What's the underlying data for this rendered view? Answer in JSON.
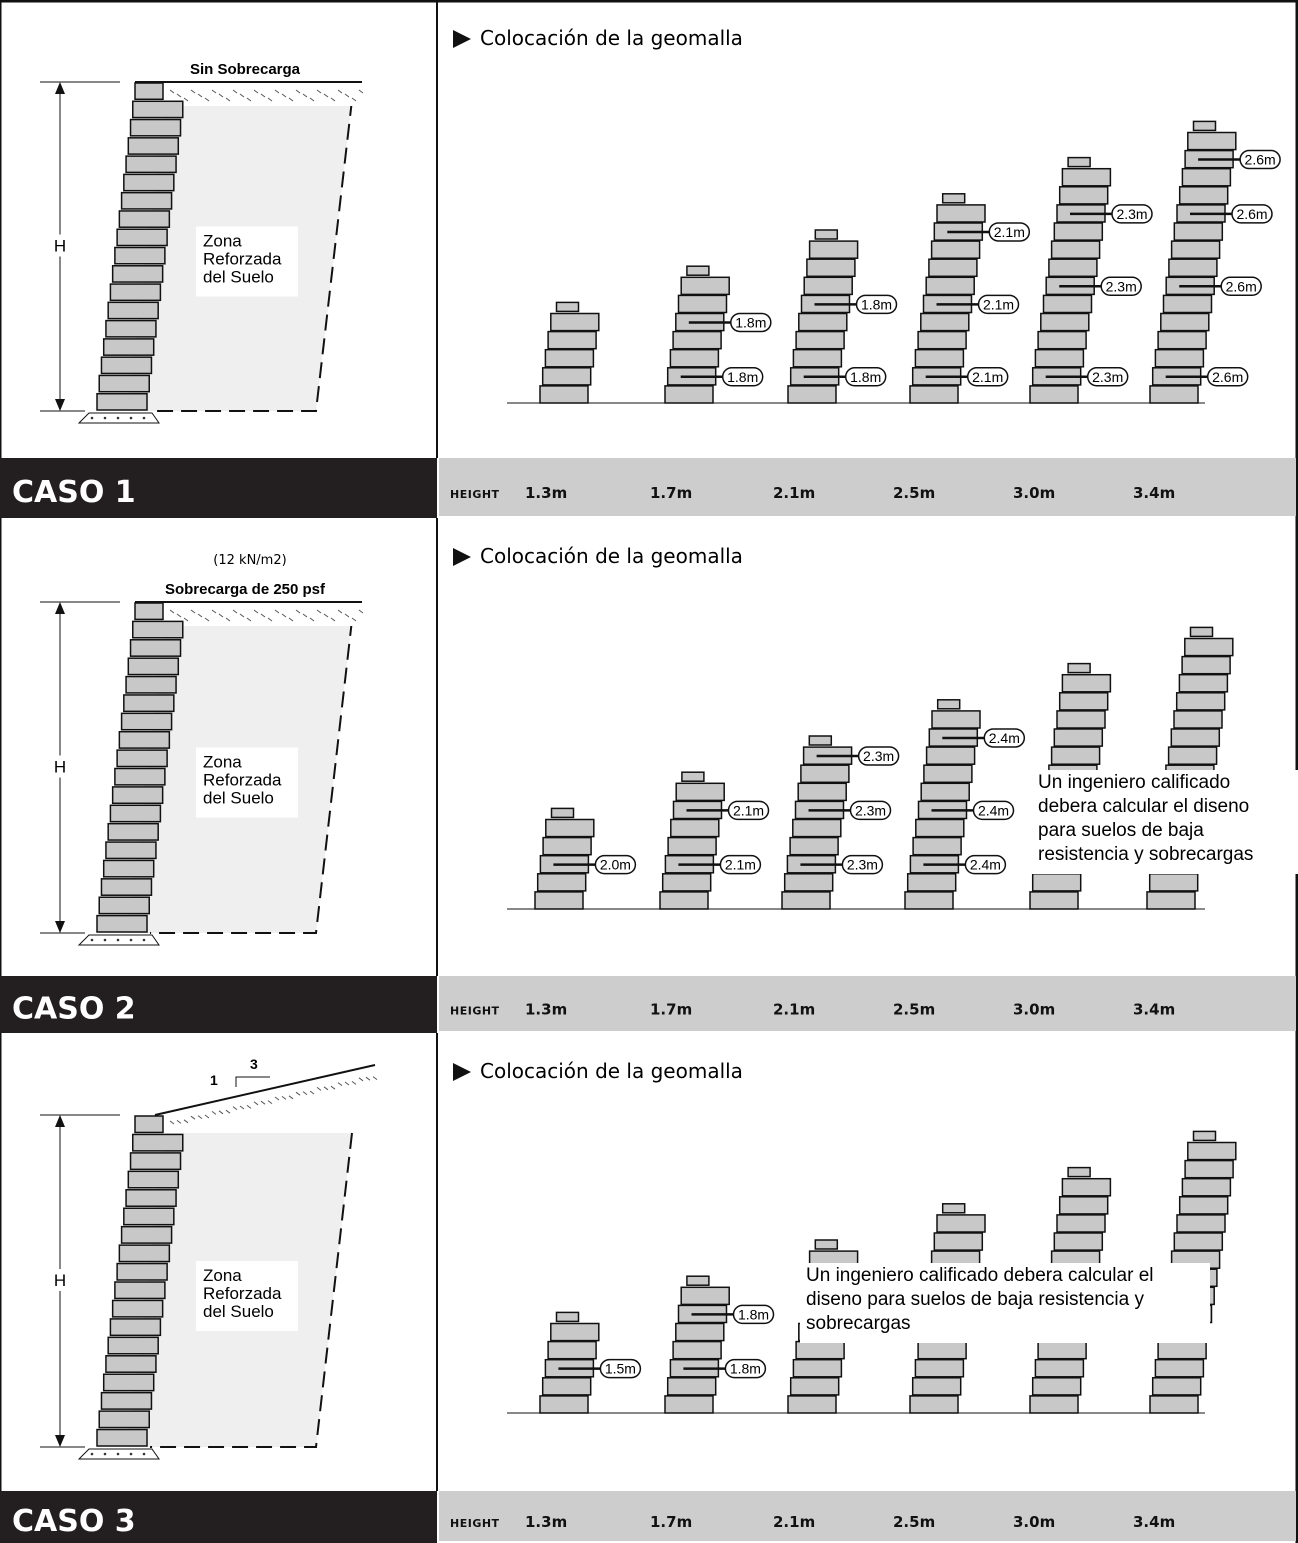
{
  "cases": [
    {
      "label": "CASO 1",
      "load_note": "",
      "load_label": "Sin Sobrecarga",
      "slope": null,
      "h_label": "H",
      "zone_label": [
        "Zona",
        "Reforzada",
        "del Suelo"
      ],
      "placement_title": "Colocación de la geomalla",
      "height_label": "Height",
      "heights": [
        "1.3m",
        "1.7m",
        "2.1m",
        "2.5m",
        "3.0m",
        "3.4m"
      ],
      "walls": [
        {
          "grids": []
        },
        {
          "grids": [
            "1.8m",
            "1.8m"
          ]
        },
        {
          "grids": [
            "1.8m",
            "1.8m"
          ]
        },
        {
          "grids": [
            "2.1m",
            "2.1m",
            "2.1m"
          ]
        },
        {
          "grids": [
            "2.3m",
            "2.3m",
            "2.3m"
          ]
        },
        {
          "grids": [
            "2.6m",
            "2.6m",
            "2.6m",
            "2.6m"
          ]
        }
      ],
      "note": []
    },
    {
      "label": "CASO 2",
      "load_note": "(12 kN/m2)",
      "load_label": "Sobrecarga de 250 psf",
      "slope": null,
      "h_label": "H",
      "zone_label": [
        "Zona",
        "Reforzada",
        "del Suelo"
      ],
      "placement_title": "Colocación de la geomalla",
      "height_label": "Height",
      "heights": [
        "1.3m",
        "1.7m",
        "2.1m",
        "2.5m",
        "3.0m",
        "3.4m"
      ],
      "walls": [
        {
          "grids": [
            "2.0m"
          ]
        },
        {
          "grids": [
            "2.1m",
            "2.1m"
          ]
        },
        {
          "grids": [
            "2.3m",
            "2.3m",
            "2.3m"
          ]
        },
        {
          "grids": [
            "2.4m",
            "2.4m",
            "2.4m"
          ]
        },
        {
          "grids": []
        },
        {
          "grids": []
        }
      ],
      "note": [
        "Un ingeniero calificado",
        "debera calcular el diseno",
        "para suelos de baja",
        "resistencia y sobrecargas"
      ]
    },
    {
      "label": "CASO 3",
      "load_note": "",
      "load_label": "",
      "slope": {
        "rise": "1",
        "run": "3"
      },
      "h_label": "H",
      "zone_label": [
        "Zona",
        "Reforzada",
        "del Suelo"
      ],
      "placement_title": "Colocación de la geomalla",
      "height_label": "Height",
      "heights": [
        "1.3m",
        "1.7m",
        "2.1m",
        "2.5m",
        "3.0m",
        "3.4m"
      ],
      "walls": [
        {
          "grids": [
            "1.5m"
          ]
        },
        {
          "grids": [
            "1.8m",
            "1.8m"
          ]
        },
        {
          "grids": []
        },
        {
          "grids": []
        },
        {
          "grids": []
        },
        {
          "grids": []
        }
      ],
      "note": [
        "Un ingeniero calificado debera calcular el",
        "diseno para suelos de baja resistencia y",
        "sobrecargas"
      ]
    }
  ],
  "colors": {
    "block_fill": "#c8c8c8",
    "zone_fill": "#efefef",
    "band_dark": "#231f20",
    "band_gray": "#cdcdcd"
  }
}
